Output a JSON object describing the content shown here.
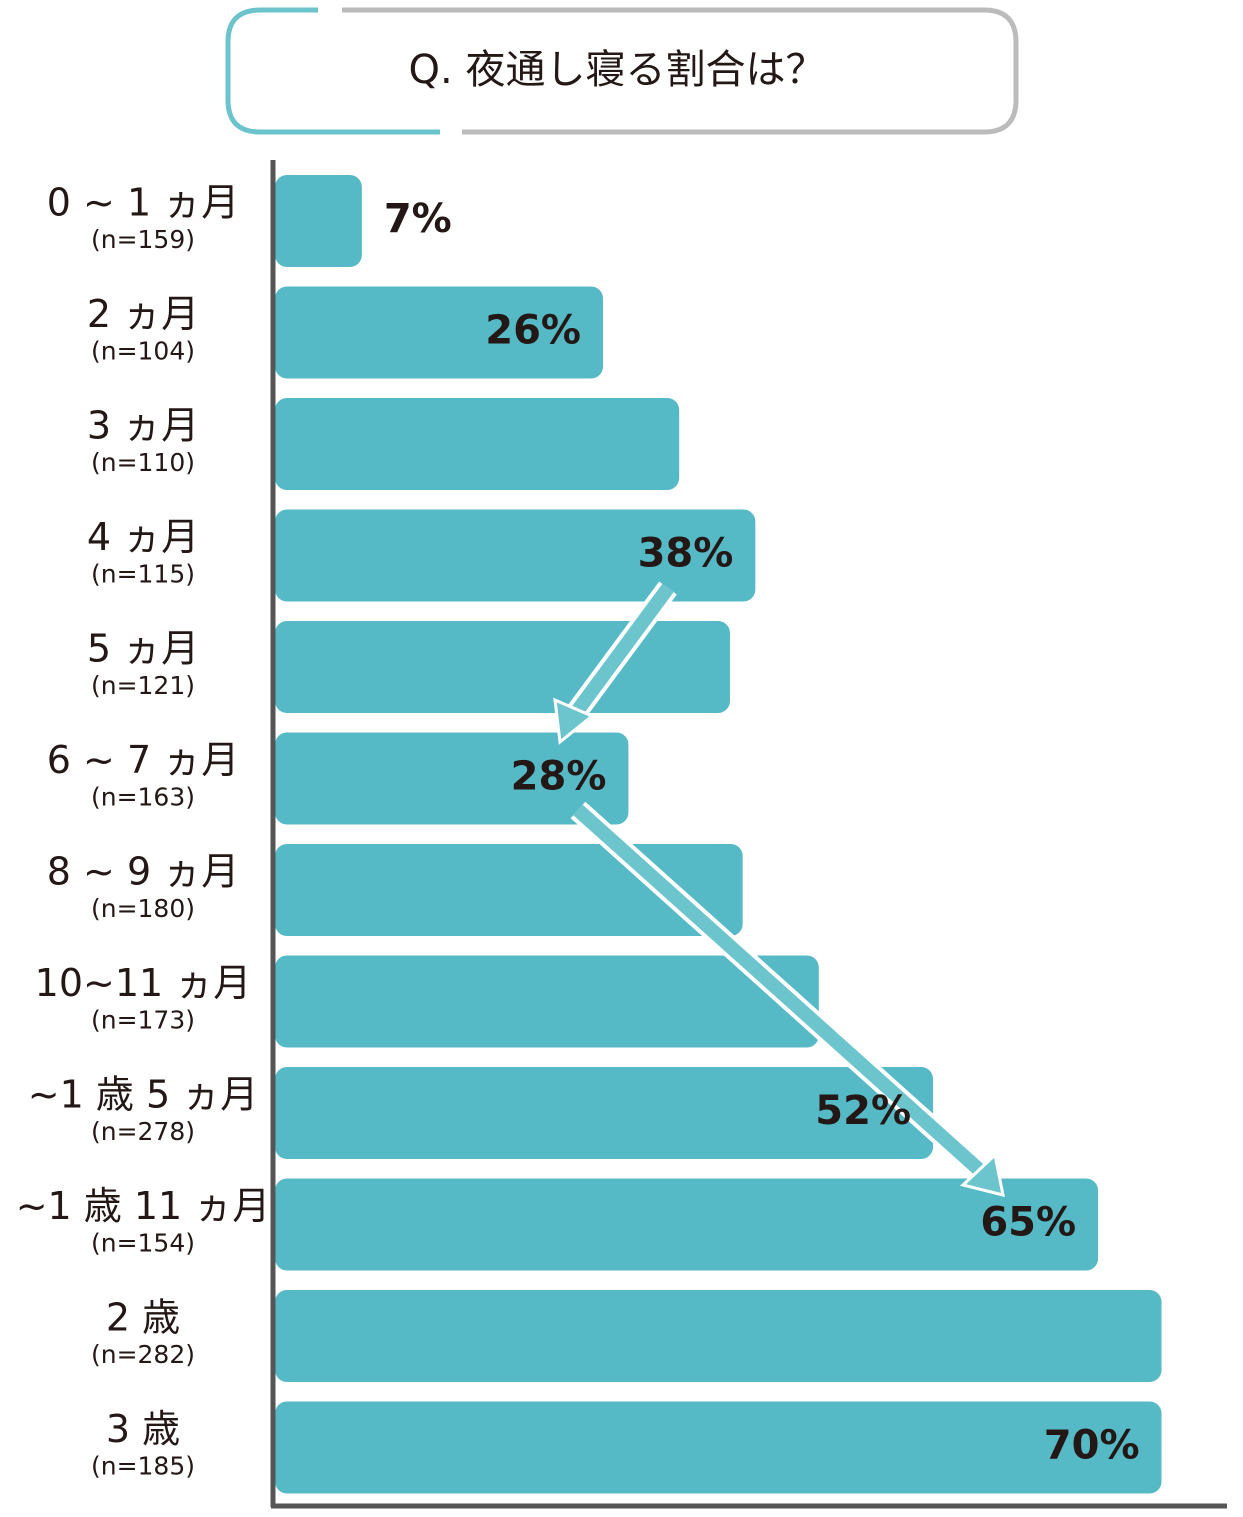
{
  "chart_data": {
    "type": "bar",
    "orientation": "horizontal",
    "title": "Q. 夜通し寝る割合は？",
    "categories": [
      "0 ~ 1 ヵ月",
      "2 ヵ月",
      "3 ヵ月",
      "4 ヵ月",
      "5 ヵ月",
      "6 ~ 7 ヵ月",
      "8 ~ 9 ヵ月",
      "10~11 ヵ月",
      "~1 歳 5 ヵ月",
      "~1 歳 11 ヵ月",
      "2 歳",
      "3 歳"
    ],
    "category_notes": [
      "(n=159)",
      "(n=104)",
      "(n=110)",
      "(n=115)",
      "(n=121)",
      "(n=163)",
      "(n=180)",
      "(n=173)",
      "(n=278)",
      "(n=154)",
      "(n=282)",
      "(n=185)"
    ],
    "values": [
      7,
      26,
      32,
      38,
      36,
      28,
      37,
      43,
      52,
      65,
      70,
      70
    ],
    "value_labels": [
      "7%",
      "26%",
      null,
      "38%",
      null,
      "28%",
      null,
      null,
      "52%",
      "65%",
      null,
      "70%"
    ],
    "color": "#55b9c6",
    "xlim": [
      0,
      75
    ]
  }
}
